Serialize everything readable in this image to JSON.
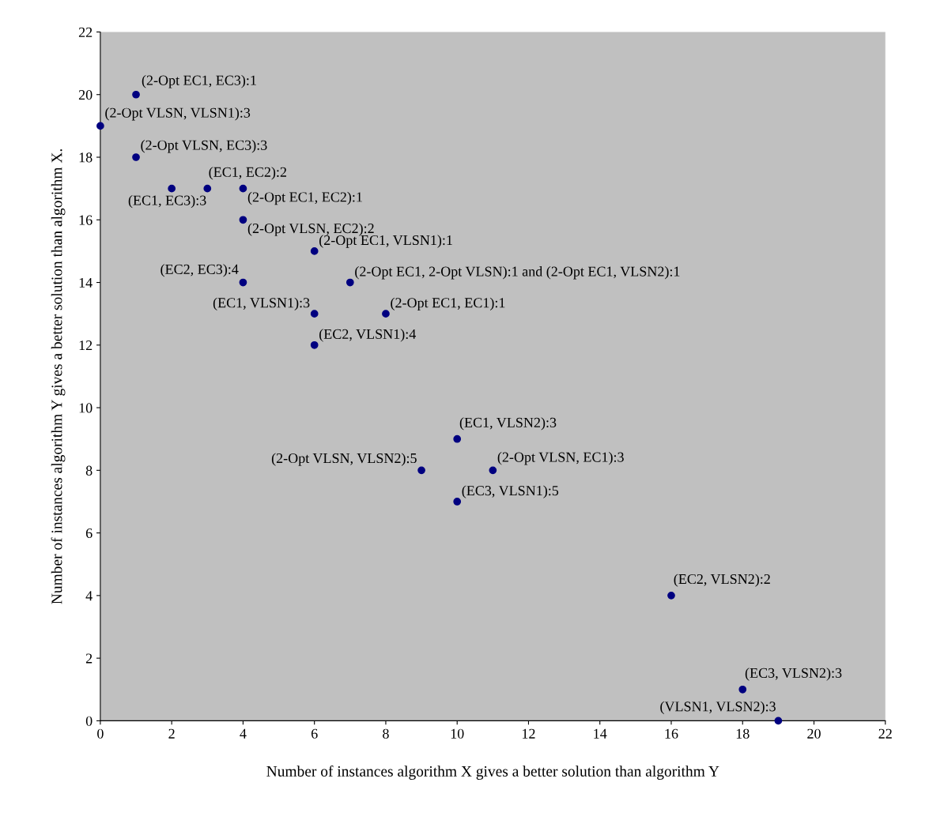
{
  "chart_data": {
    "type": "scatter",
    "xlabel": "Number of instances algorithm X gives a better solution than algorithm Y",
    "ylabel": "Number of instances algorithm Y gives a better solution than algorithm X.",
    "x": [
      1,
      0,
      1,
      3,
      2,
      4,
      4,
      6,
      4,
      7,
      6,
      8,
      6,
      10,
      9,
      11,
      10,
      16,
      18,
      19
    ],
    "series": [
      {
        "color": "#000080",
        "values": [
          20,
          19,
          18,
          17,
          17,
          17,
          16,
          15,
          14,
          14,
          13,
          13,
          12,
          9,
          8,
          8,
          7,
          4,
          1,
          0
        ]
      }
    ],
    "marker": "circle",
    "xlim": [
      0,
      22
    ],
    "ylim": [
      0,
      22
    ],
    "xticks": [
      0,
      2,
      4,
      6,
      8,
      10,
      12,
      14,
      16,
      18,
      20,
      22
    ],
    "yticks": [
      0,
      2,
      4,
      6,
      8,
      10,
      12,
      14,
      16,
      18,
      20,
      22
    ],
    "grid": false,
    "legend": false,
    "annotations": [
      {
        "text": "(2-Opt EC1, EC3):1",
        "x": 1,
        "y": 20
      },
      {
        "text": "(2-Opt VLSN, VLSN1):3",
        "x": 0,
        "y": 19
      },
      {
        "text": "(2-Opt VLSN, EC3):3",
        "x": 1,
        "y": 18
      },
      {
        "text": "(EC1, EC2):2",
        "x": 3,
        "y": 17
      },
      {
        "text": "(EC1, EC3):3",
        "x": 2,
        "y": 17
      },
      {
        "text": "(2-Opt EC1, EC2):1",
        "x": 4,
        "y": 17
      },
      {
        "text": "(2-Opt VLSN, EC2):2",
        "x": 4,
        "y": 16
      },
      {
        "text": "(2-Opt EC1, VLSN1):1",
        "x": 6,
        "y": 15
      },
      {
        "text": "(EC2, EC3):4",
        "x": 4,
        "y": 14
      },
      {
        "text": "(2-Opt EC1, 2-Opt VLSN):1 and (2-Opt EC1, VLSN2):1",
        "x": 7,
        "y": 14
      },
      {
        "text": "(EC1, VLSN1):3",
        "x": 6,
        "y": 13
      },
      {
        "text": "(2-Opt EC1, EC1):1",
        "x": 8,
        "y": 13
      },
      {
        "text": "(EC2, VLSN1):4",
        "x": 6,
        "y": 12
      },
      {
        "text": "(EC1, VLSN2):3",
        "x": 10,
        "y": 9
      },
      {
        "text": "(2-Opt VLSN, VLSN2):5",
        "x": 9,
        "y": 8
      },
      {
        "text": "(2-Opt VLSN, EC1):3",
        "x": 11,
        "y": 8
      },
      {
        "text": "(EC3, VLSN1):5",
        "x": 10,
        "y": 7
      },
      {
        "text": "(EC2, VLSN2):2",
        "x": 16,
        "y": 4
      },
      {
        "text": "(EC3, VLSN2):3",
        "x": 18,
        "y": 1
      },
      {
        "text": "(VLSN1, VLSN2):3",
        "x": 19,
        "y": 0
      }
    ]
  }
}
